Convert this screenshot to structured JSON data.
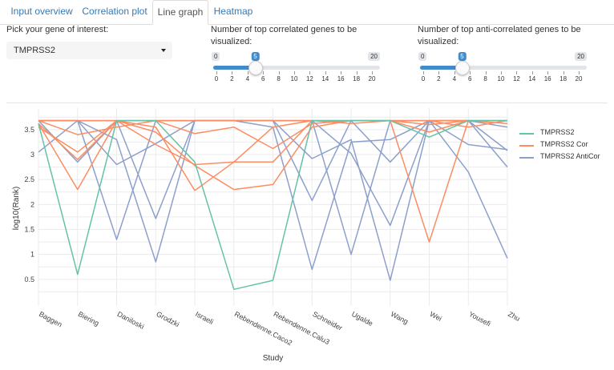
{
  "tabs": [
    {
      "label": "Input overview",
      "active": false
    },
    {
      "label": "Correlation plot",
      "active": false
    },
    {
      "label": "Line graph",
      "active": true
    },
    {
      "label": "Heatmap",
      "active": false
    }
  ],
  "gene_select": {
    "label": "Pick your gene of interest:",
    "value": "TMPRSS2"
  },
  "corr_slider": {
    "label_line1": "Number of top correlated genes to be",
    "label_line2": "visualized:",
    "min": 0,
    "max": 20,
    "value": 5,
    "ticks": [
      "0",
      "2",
      "4",
      "6",
      "8",
      "10",
      "12",
      "14",
      "16",
      "18",
      "20"
    ]
  },
  "anticorr_slider": {
    "label_line1": "Number of top anti-correlated genes to be",
    "label_line2": "visualized:",
    "min": 0,
    "max": 20,
    "value": 5,
    "ticks": [
      "0",
      "2",
      "4",
      "6",
      "8",
      "10",
      "12",
      "14",
      "16",
      "18",
      "20"
    ]
  },
  "chart_data": {
    "type": "line",
    "xlabel": "Study",
    "ylabel": "log10(Rank)",
    "categories": [
      "Baggen",
      "Biering",
      "Daniloski",
      "Grodzki",
      "Israeli",
      "Rebendenne.Caco2",
      "Rebendenne.Calu3",
      "Schneider",
      "Ugalde",
      "Wang",
      "Wei",
      "Yousefi",
      "Zhu"
    ],
    "yticks": [
      "0.5",
      "1",
      "1.5",
      "2",
      "2.5",
      "3",
      "3.5"
    ],
    "ylim": [
      0.0,
      3.85
    ],
    "grid": true,
    "legend_position": "right",
    "series": [
      {
        "name": "TMPRSS2",
        "color": "#66c2a5",
        "lines": [
          [
            3.62,
            0.6,
            3.68,
            3.68,
            2.85,
            0.3,
            0.48,
            3.68,
            3.68,
            3.68,
            3.35,
            3.68,
            3.68
          ]
        ]
      },
      {
        "name": "TMPRSS2 Cor",
        "color": "#fc8d62",
        "lines": [
          [
            3.62,
            2.3,
            3.68,
            3.55,
            2.28,
            2.85,
            2.85,
            3.68,
            3.68,
            3.68,
            1.25,
            3.68,
            3.68
          ],
          [
            3.62,
            2.9,
            3.68,
            3.45,
            2.78,
            2.3,
            2.4,
            3.55,
            3.68,
            3.68,
            3.68,
            3.55,
            3.68
          ],
          [
            3.68,
            3.4,
            3.55,
            3.68,
            3.42,
            3.55,
            3.12,
            3.62,
            3.68,
            3.68,
            3.45,
            3.68,
            3.68
          ],
          [
            3.55,
            3.05,
            3.68,
            3.2,
            2.8,
            2.85,
            3.55,
            3.68,
            3.62,
            3.68,
            3.6,
            3.68,
            3.62
          ],
          [
            3.68,
            3.68,
            3.68,
            3.68,
            3.68,
            3.68,
            3.68,
            3.68,
            3.68,
            3.68,
            3.68,
            3.68,
            3.68
          ]
        ]
      },
      {
        "name": "TMPRSS2 AntiCor",
        "color": "#8da0cb",
        "lines": [
          [
            3.05,
            3.68,
            1.3,
            3.68,
            3.68,
            3.68,
            3.55,
            0.7,
            3.25,
            3.3,
            3.68,
            3.68,
            3.08
          ],
          [
            3.68,
            3.68,
            2.8,
            3.22,
            3.68,
            3.68,
            3.68,
            2.08,
            3.68,
            2.85,
            3.68,
            3.2,
            3.1
          ],
          [
            3.68,
            3.68,
            3.3,
            0.85,
            3.68,
            3.68,
            3.68,
            3.68,
            1.0,
            3.68,
            3.68,
            3.68,
            2.75
          ],
          [
            3.68,
            2.85,
            3.68,
            1.72,
            3.68,
            3.68,
            3.68,
            3.68,
            3.02,
            1.58,
            3.68,
            2.65,
            0.92
          ],
          [
            3.68,
            3.68,
            3.68,
            3.68,
            3.68,
            3.68,
            3.68,
            2.92,
            3.3,
            0.48,
            3.68,
            3.68,
            3.55
          ]
        ]
      }
    ]
  }
}
